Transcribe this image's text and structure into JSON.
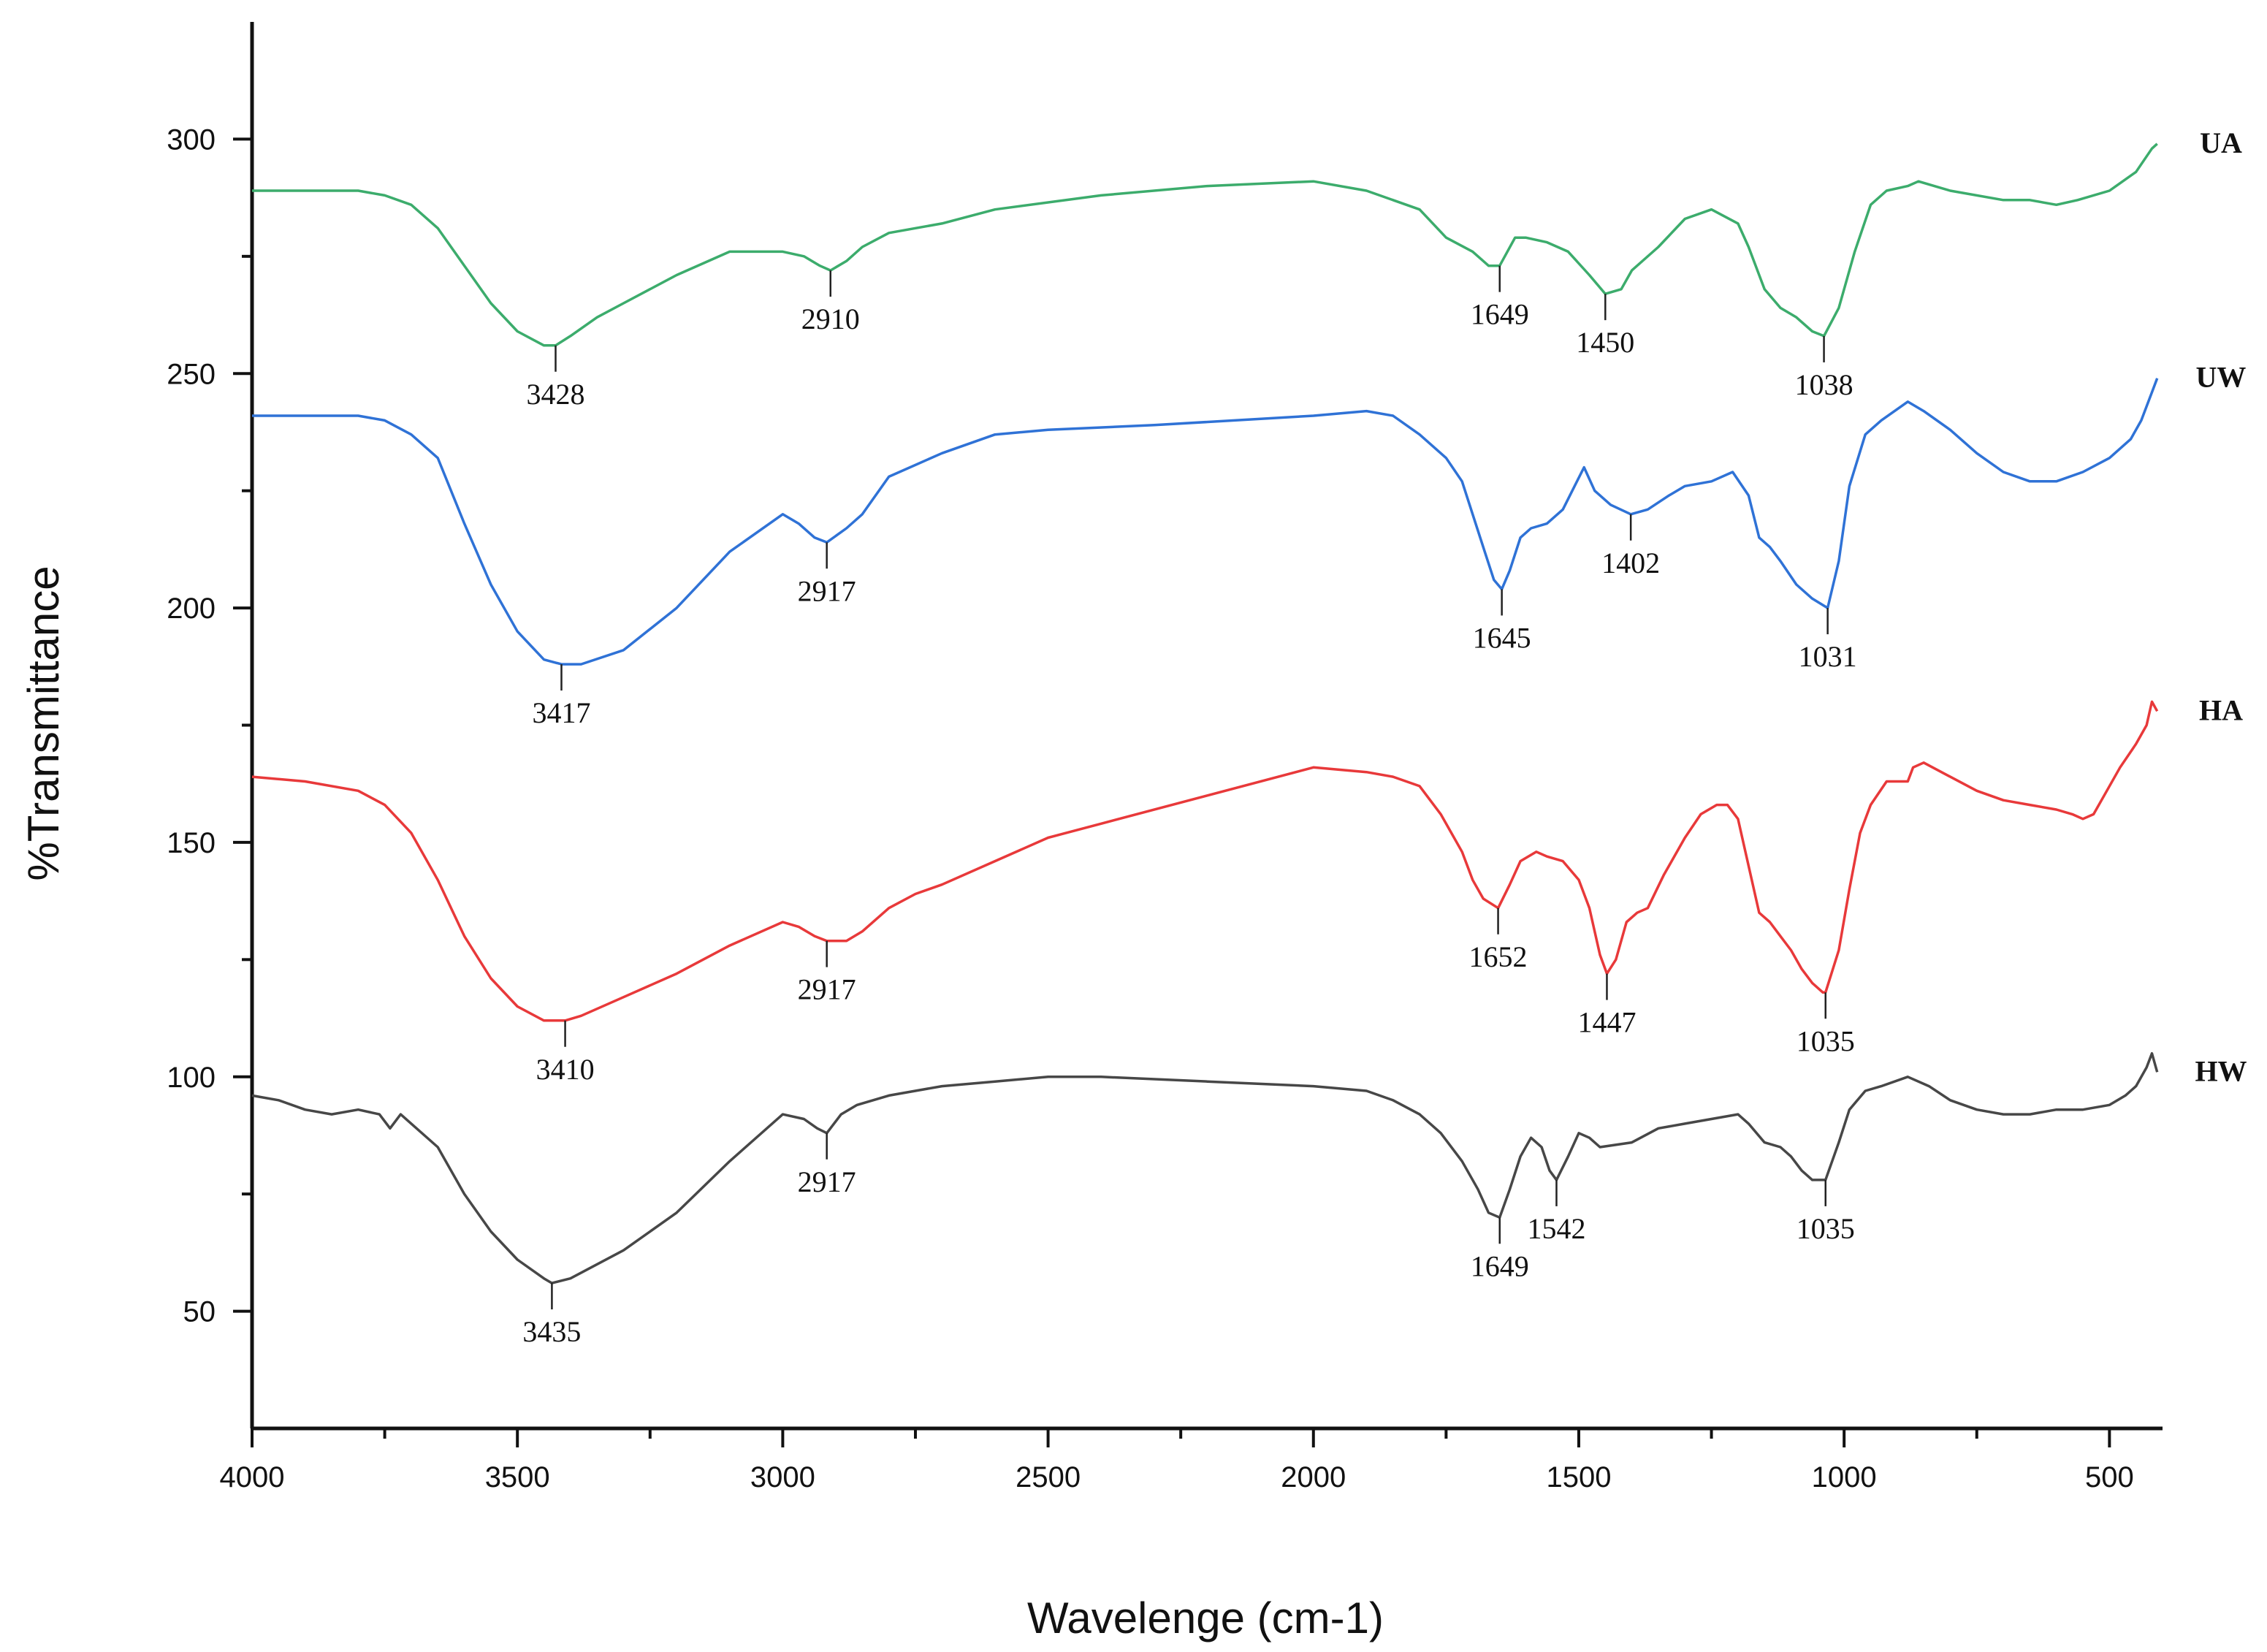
{
  "chart_data": {
    "type": "line",
    "title": "",
    "xlabel": "Wavelenge (cm-1)",
    "ylabel": "%Transmittance",
    "xlim": [
      4000,
      400
    ],
    "ylim": [
      25,
      325
    ],
    "xticks": [
      4000,
      3500,
      3000,
      2500,
      2000,
      1500,
      1000,
      500
    ],
    "yticks": [
      50,
      100,
      150,
      200,
      250,
      300
    ],
    "series": [
      {
        "name": "UA",
        "color": "#3cac6c",
        "x": [
          4000,
          3900,
          3800,
          3750,
          3700,
          3650,
          3600,
          3550,
          3500,
          3450,
          3428,
          3400,
          3350,
          3300,
          3200,
          3100,
          3000,
          2960,
          2930,
          2910,
          2880,
          2850,
          2800,
          2700,
          2600,
          2400,
          2200,
          2000,
          1900,
          1850,
          1800,
          1750,
          1700,
          1670,
          1649,
          1620,
          1600,
          1560,
          1520,
          1480,
          1450,
          1420,
          1400,
          1350,
          1300,
          1250,
          1200,
          1180,
          1150,
          1120,
          1090,
          1060,
          1038,
          1010,
          980,
          950,
          920,
          880,
          860,
          800,
          700,
          650,
          600,
          560,
          500,
          450,
          420,
          410
        ],
        "y": [
          289,
          289,
          289,
          288,
          286,
          281,
          273,
          265,
          259,
          256,
          256,
          258,
          262,
          265,
          271,
          276,
          276,
          275,
          273,
          272,
          274,
          277,
          280,
          282,
          285,
          288,
          290,
          291,
          289,
          287,
          285,
          279,
          276,
          273,
          273,
          279,
          279,
          278,
          276,
          271,
          267,
          268,
          272,
          277,
          283,
          285,
          282,
          277,
          268,
          264,
          262,
          259,
          258,
          264,
          276,
          286,
          289,
          290,
          291,
          289,
          287,
          287,
          286,
          287,
          289,
          293,
          298,
          299
        ]
      },
      {
        "name": "UW",
        "color": "#2f72d6",
        "x": [
          4000,
          3900,
          3800,
          3750,
          3700,
          3650,
          3600,
          3550,
          3500,
          3450,
          3417,
          3380,
          3300,
          3200,
          3100,
          3000,
          2970,
          2940,
          2917,
          2880,
          2850,
          2800,
          2700,
          2600,
          2500,
          2300,
          2000,
          1900,
          1850,
          1800,
          1750,
          1720,
          1700,
          1680,
          1660,
          1645,
          1630,
          1610,
          1590,
          1560,
          1530,
          1490,
          1470,
          1440,
          1402,
          1370,
          1330,
          1300,
          1250,
          1210,
          1180,
          1160,
          1140,
          1120,
          1090,
          1060,
          1031,
          1010,
          990,
          960,
          930,
          880,
          850,
          800,
          750,
          700,
          650,
          600,
          550,
          500,
          460,
          440,
          420,
          410
        ],
        "y": [
          241,
          241,
          241,
          240,
          237,
          232,
          218,
          205,
          195,
          189,
          188,
          188,
          191,
          200,
          212,
          220,
          218,
          215,
          214,
          217,
          220,
          228,
          233,
          237,
          238,
          239,
          241,
          242,
          241,
          237,
          232,
          227,
          220,
          213,
          206,
          204,
          208,
          215,
          217,
          218,
          221,
          230,
          225,
          222,
          220,
          221,
          224,
          226,
          227,
          229,
          224,
          215,
          213,
          210,
          205,
          202,
          200,
          210,
          226,
          237,
          240,
          244,
          242,
          238,
          233,
          229,
          227,
          227,
          229,
          232,
          236,
          240,
          246,
          249
        ]
      },
      {
        "name": "HA",
        "color": "#e8393a",
        "x": [
          4000,
          3900,
          3800,
          3750,
          3700,
          3650,
          3600,
          3550,
          3500,
          3450,
          3410,
          3380,
          3300,
          3200,
          3100,
          3000,
          2970,
          2940,
          2917,
          2880,
          2850,
          2800,
          2750,
          2700,
          2600,
          2500,
          2400,
          2200,
          2000,
          1900,
          1850,
          1800,
          1760,
          1720,
          1700,
          1680,
          1652,
          1630,
          1610,
          1580,
          1560,
          1530,
          1500,
          1480,
          1460,
          1447,
          1430,
          1410,
          1390,
          1370,
          1340,
          1300,
          1270,
          1240,
          1220,
          1200,
          1180,
          1160,
          1140,
          1120,
          1100,
          1080,
          1060,
          1040,
          1035,
          1010,
          990,
          970,
          950,
          920,
          880,
          870,
          850,
          800,
          750,
          700,
          650,
          600,
          570,
          550,
          530,
          510,
          480,
          450,
          430,
          420,
          410
        ],
        "y": [
          164,
          163,
          161,
          158,
          152,
          142,
          130,
          121,
          115,
          112,
          112,
          113,
          117,
          122,
          128,
          133,
          132,
          130,
          129,
          129,
          131,
          136,
          139,
          141,
          146,
          151,
          154,
          160,
          166,
          165,
          164,
          162,
          156,
          148,
          142,
          138,
          136,
          141,
          146,
          148,
          147,
          146,
          142,
          136,
          126,
          122,
          125,
          133,
          135,
          136,
          143,
          151,
          156,
          158,
          158,
          155,
          145,
          135,
          133,
          130,
          127,
          123,
          120,
          118,
          118,
          127,
          140,
          152,
          158,
          163,
          163,
          166,
          167,
          164,
          161,
          159,
          158,
          157,
          156,
          155,
          156,
          160,
          166,
          171,
          175,
          180,
          178
        ]
      },
      {
        "name": "HW",
        "color": "#474747",
        "x": [
          4000,
          3950,
          3900,
          3850,
          3800,
          3760,
          3740,
          3720,
          3700,
          3650,
          3600,
          3550,
          3500,
          3450,
          3435,
          3400,
          3300,
          3200,
          3100,
          3000,
          2960,
          2935,
          2917,
          2890,
          2860,
          2800,
          2700,
          2600,
          2500,
          2400,
          2200,
          2000,
          1900,
          1850,
          1800,
          1760,
          1720,
          1690,
          1670,
          1649,
          1630,
          1610,
          1590,
          1570,
          1555,
          1542,
          1520,
          1500,
          1480,
          1460,
          1400,
          1350,
          1300,
          1250,
          1200,
          1180,
          1150,
          1120,
          1100,
          1080,
          1060,
          1035,
          1010,
          990,
          960,
          930,
          880,
          840,
          800,
          750,
          700,
          650,
          600,
          550,
          500,
          470,
          450,
          430,
          420,
          410
        ],
        "y": [
          96,
          95,
          93,
          92,
          93,
          92,
          89,
          92,
          90,
          85,
          75,
          67,
          61,
          57,
          56,
          57,
          63,
          71,
          82,
          92,
          91,
          89,
          88,
          92,
          94,
          96,
          98,
          99,
          100,
          100,
          99,
          98,
          97,
          95,
          92,
          88,
          82,
          76,
          71,
          70,
          76,
          83,
          87,
          85,
          80,
          78,
          83,
          88,
          87,
          85,
          86,
          89,
          90,
          91,
          92,
          90,
          86,
          85,
          83,
          80,
          78,
          78,
          86,
          93,
          97,
          98,
          100,
          98,
          95,
          93,
          92,
          92,
          93,
          93,
          94,
          96,
          98,
          102,
          105,
          101
        ]
      }
    ],
    "peak_labels": [
      {
        "series": "UA",
        "label": "3428",
        "x": 3428,
        "y": 256
      },
      {
        "series": "UA",
        "label": "2910",
        "x": 2910,
        "y": 272
      },
      {
        "series": "UA",
        "label": "1649",
        "x": 1649,
        "y": 273
      },
      {
        "series": "UA",
        "label": "1450",
        "x": 1450,
        "y": 267
      },
      {
        "series": "UA",
        "label": "1038",
        "x": 1038,
        "y": 258
      },
      {
        "series": "UW",
        "label": "3417",
        "x": 3417,
        "y": 188
      },
      {
        "series": "UW",
        "label": "2917",
        "x": 2917,
        "y": 214
      },
      {
        "series": "UW",
        "label": "1645",
        "x": 1645,
        "y": 204
      },
      {
        "series": "UW",
        "label": "1402",
        "x": 1402,
        "y": 220
      },
      {
        "series": "UW",
        "label": "1031",
        "x": 1031,
        "y": 200
      },
      {
        "series": "HA",
        "label": "3410",
        "x": 3410,
        "y": 112
      },
      {
        "series": "HA",
        "label": "2917",
        "x": 2917,
        "y": 129
      },
      {
        "series": "HA",
        "label": "1652",
        "x": 1652,
        "y": 136
      },
      {
        "series": "HA",
        "label": "1447",
        "x": 1447,
        "y": 122
      },
      {
        "series": "HA",
        "label": "1035",
        "x": 1035,
        "y": 118
      },
      {
        "series": "HW",
        "label": "3435",
        "x": 3435,
        "y": 56
      },
      {
        "series": "HW",
        "label": "2917",
        "x": 2917,
        "y": 88
      },
      {
        "series": "HW",
        "label": "1649",
        "x": 1649,
        "y": 70
      },
      {
        "series": "HW",
        "label": "1542",
        "x": 1542,
        "y": 78
      },
      {
        "series": "HW",
        "label": "1035",
        "x": 1035,
        "y": 78
      }
    ]
  }
}
